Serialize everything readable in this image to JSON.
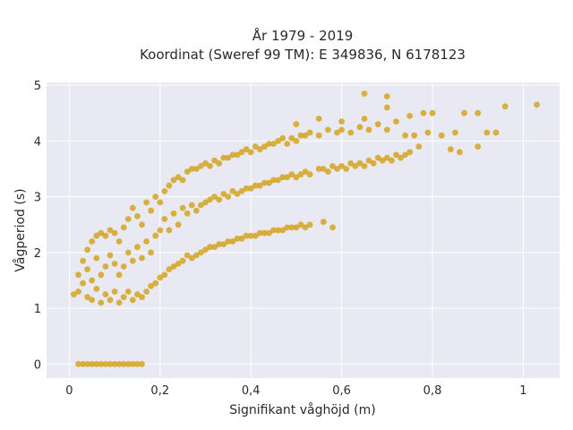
{
  "chart_data": {
    "type": "scatter",
    "title_lines": [
      "År 1979 - 2019",
      "Koordinat (Sweref 99 TM): E 349836, N 6178123"
    ],
    "xlabel": "Signifikant våghöjd (m)",
    "ylabel": "Vågperiod (s)",
    "xlim": [
      -0.05,
      1.08
    ],
    "ylim": [
      -0.25,
      5.05
    ],
    "x_ticks": [
      0,
      0.2,
      0.4,
      0.6,
      0.8,
      1
    ],
    "x_tick_labels": [
      "0",
      "0,2",
      "0,4",
      "0,6",
      "0,8",
      "1"
    ],
    "y_ticks": [
      0,
      1,
      2,
      3,
      4,
      5
    ],
    "y_tick_labels": [
      "0",
      "1",
      "2",
      "3",
      "4",
      "5"
    ],
    "grid": true,
    "colors": {
      "marker": "#d4a520",
      "plot_bg": "#e8e9f2",
      "grid": "#ffffff"
    },
    "series": [
      {
        "points": [
          [
            0.02,
            0.0
          ],
          [
            0.03,
            0.0
          ],
          [
            0.04,
            0.0
          ],
          [
            0.05,
            0.0
          ],
          [
            0.06,
            0.0
          ],
          [
            0.07,
            0.0
          ],
          [
            0.08,
            0.0
          ],
          [
            0.09,
            0.0
          ],
          [
            0.1,
            0.0
          ],
          [
            0.11,
            0.0
          ],
          [
            0.12,
            0.0
          ],
          [
            0.13,
            0.0
          ],
          [
            0.14,
            0.0
          ],
          [
            0.15,
            0.0
          ],
          [
            0.16,
            0.0
          ],
          [
            0.01,
            1.25
          ],
          [
            0.02,
            1.3
          ],
          [
            0.02,
            1.6
          ],
          [
            0.03,
            1.45
          ],
          [
            0.03,
            1.85
          ],
          [
            0.04,
            1.2
          ],
          [
            0.04,
            1.7
          ],
          [
            0.04,
            2.05
          ],
          [
            0.05,
            1.15
          ],
          [
            0.05,
            1.5
          ],
          [
            0.05,
            2.2
          ],
          [
            0.06,
            1.35
          ],
          [
            0.06,
            1.9
          ],
          [
            0.06,
            2.3
          ],
          [
            0.07,
            1.1
          ],
          [
            0.07,
            1.6
          ],
          [
            0.07,
            2.35
          ],
          [
            0.08,
            1.25
          ],
          [
            0.08,
            1.75
          ],
          [
            0.08,
            2.3
          ],
          [
            0.09,
            1.15
          ],
          [
            0.09,
            1.95
          ],
          [
            0.09,
            2.4
          ],
          [
            0.1,
            1.3
          ],
          [
            0.1,
            1.8
          ],
          [
            0.1,
            2.35
          ],
          [
            0.11,
            1.1
          ],
          [
            0.11,
            1.6
          ],
          [
            0.11,
            2.2
          ],
          [
            0.12,
            1.2
          ],
          [
            0.12,
            1.75
          ],
          [
            0.12,
            2.45
          ],
          [
            0.13,
            1.3
          ],
          [
            0.13,
            2.0
          ],
          [
            0.13,
            2.6
          ],
          [
            0.14,
            1.15
          ],
          [
            0.14,
            1.85
          ],
          [
            0.14,
            2.8
          ],
          [
            0.15,
            1.25
          ],
          [
            0.15,
            2.1
          ],
          [
            0.15,
            2.65
          ],
          [
            0.16,
            1.2
          ],
          [
            0.16,
            1.9
          ],
          [
            0.16,
            2.5
          ],
          [
            0.17,
            1.3
          ],
          [
            0.17,
            2.2
          ],
          [
            0.17,
            2.9
          ],
          [
            0.18,
            1.4
          ],
          [
            0.18,
            2.0
          ],
          [
            0.18,
            2.75
          ],
          [
            0.19,
            1.45
          ],
          [
            0.19,
            2.3
          ],
          [
            0.19,
            3.0
          ],
          [
            0.2,
            1.55
          ],
          [
            0.2,
            2.4
          ],
          [
            0.2,
            2.9
          ],
          [
            0.21,
            1.6
          ],
          [
            0.21,
            2.6
          ],
          [
            0.21,
            3.1
          ],
          [
            0.22,
            1.7
          ],
          [
            0.22,
            2.4
          ],
          [
            0.22,
            3.2
          ],
          [
            0.23,
            1.75
          ],
          [
            0.23,
            2.7
          ],
          [
            0.23,
            3.3
          ],
          [
            0.24,
            1.8
          ],
          [
            0.24,
            2.5
          ],
          [
            0.24,
            3.35
          ],
          [
            0.25,
            1.85
          ],
          [
            0.25,
            2.8
          ],
          [
            0.25,
            3.3
          ],
          [
            0.26,
            1.95
          ],
          [
            0.26,
            2.7
          ],
          [
            0.26,
            3.45
          ],
          [
            0.27,
            1.9
          ],
          [
            0.27,
            2.85
          ],
          [
            0.27,
            3.5
          ],
          [
            0.28,
            1.95
          ],
          [
            0.28,
            2.75
          ],
          [
            0.28,
            3.5
          ],
          [
            0.29,
            2.0
          ],
          [
            0.29,
            2.85
          ],
          [
            0.29,
            3.55
          ],
          [
            0.3,
            2.05
          ],
          [
            0.3,
            2.9
          ],
          [
            0.3,
            3.6
          ],
          [
            0.31,
            2.1
          ],
          [
            0.31,
            2.95
          ],
          [
            0.31,
            3.55
          ],
          [
            0.32,
            2.1
          ],
          [
            0.32,
            3.0
          ],
          [
            0.32,
            3.65
          ],
          [
            0.33,
            2.15
          ],
          [
            0.33,
            2.95
          ],
          [
            0.33,
            3.6
          ],
          [
            0.34,
            2.15
          ],
          [
            0.34,
            3.05
          ],
          [
            0.34,
            3.7
          ],
          [
            0.35,
            2.2
          ],
          [
            0.35,
            3.0
          ],
          [
            0.35,
            3.7
          ],
          [
            0.36,
            2.2
          ],
          [
            0.36,
            3.1
          ],
          [
            0.36,
            3.75
          ],
          [
            0.37,
            2.25
          ],
          [
            0.37,
            3.05
          ],
          [
            0.37,
            3.75
          ],
          [
            0.38,
            2.25
          ],
          [
            0.38,
            3.1
          ],
          [
            0.38,
            3.8
          ],
          [
            0.39,
            2.3
          ],
          [
            0.39,
            3.15
          ],
          [
            0.39,
            3.85
          ],
          [
            0.4,
            2.3
          ],
          [
            0.4,
            3.15
          ],
          [
            0.4,
            3.8
          ],
          [
            0.41,
            2.3
          ],
          [
            0.41,
            3.2
          ],
          [
            0.41,
            3.9
          ],
          [
            0.42,
            2.35
          ],
          [
            0.42,
            3.2
          ],
          [
            0.42,
            3.85
          ],
          [
            0.43,
            2.35
          ],
          [
            0.43,
            3.25
          ],
          [
            0.43,
            3.9
          ],
          [
            0.44,
            2.35
          ],
          [
            0.44,
            3.25
          ],
          [
            0.44,
            3.95
          ],
          [
            0.45,
            2.4
          ],
          [
            0.45,
            3.3
          ],
          [
            0.45,
            3.95
          ],
          [
            0.46,
            2.4
          ],
          [
            0.46,
            3.3
          ],
          [
            0.46,
            4.0
          ],
          [
            0.47,
            2.4
          ],
          [
            0.47,
            3.35
          ],
          [
            0.47,
            4.05
          ],
          [
            0.48,
            2.45
          ],
          [
            0.48,
            3.35
          ],
          [
            0.48,
            3.95
          ],
          [
            0.49,
            2.45
          ],
          [
            0.49,
            3.4
          ],
          [
            0.49,
            4.05
          ],
          [
            0.5,
            2.45
          ],
          [
            0.5,
            3.35
          ],
          [
            0.5,
            4.0
          ],
          [
            0.51,
            2.5
          ],
          [
            0.51,
            3.4
          ],
          [
            0.51,
            4.1
          ],
          [
            0.52,
            2.45
          ],
          [
            0.52,
            3.45
          ],
          [
            0.52,
            4.1
          ],
          [
            0.53,
            2.5
          ],
          [
            0.53,
            3.4
          ],
          [
            0.53,
            4.15
          ],
          [
            0.55,
            3.5
          ],
          [
            0.55,
            4.1
          ],
          [
            0.56,
            2.55
          ],
          [
            0.56,
            3.5
          ],
          [
            0.57,
            3.45
          ],
          [
            0.57,
            4.2
          ],
          [
            0.58,
            2.45
          ],
          [
            0.58,
            3.55
          ],
          [
            0.59,
            3.5
          ],
          [
            0.59,
            4.15
          ],
          [
            0.6,
            3.55
          ],
          [
            0.6,
            4.2
          ],
          [
            0.61,
            3.5
          ],
          [
            0.62,
            3.6
          ],
          [
            0.62,
            4.15
          ],
          [
            0.63,
            3.55
          ],
          [
            0.64,
            3.6
          ],
          [
            0.64,
            4.25
          ],
          [
            0.65,
            3.55
          ],
          [
            0.66,
            3.65
          ],
          [
            0.66,
            4.2
          ],
          [
            0.67,
            3.6
          ],
          [
            0.68,
            3.7
          ],
          [
            0.68,
            4.3
          ],
          [
            0.69,
            3.65
          ],
          [
            0.7,
            3.7
          ],
          [
            0.7,
            4.2
          ],
          [
            0.71,
            3.65
          ],
          [
            0.72,
            3.75
          ],
          [
            0.72,
            4.35
          ],
          [
            0.73,
            3.7
          ],
          [
            0.74,
            3.75
          ],
          [
            0.74,
            4.1
          ],
          [
            0.75,
            3.8
          ],
          [
            0.76,
            4.1
          ],
          [
            0.77,
            3.9
          ],
          [
            0.78,
            4.5
          ],
          [
            0.79,
            4.15
          ],
          [
            0.8,
            4.5
          ],
          [
            0.82,
            4.1
          ],
          [
            0.84,
            3.85
          ],
          [
            0.85,
            4.15
          ],
          [
            0.86,
            3.8
          ],
          [
            0.87,
            4.5
          ],
          [
            0.9,
            3.9
          ],
          [
            0.9,
            4.5
          ],
          [
            0.92,
            4.15
          ],
          [
            0.94,
            4.15
          ],
          [
            0.96,
            4.62
          ],
          [
            1.03,
            4.65
          ],
          [
            0.65,
            4.85
          ],
          [
            0.7,
            4.8
          ],
          [
            0.65,
            4.4
          ],
          [
            0.7,
            4.6
          ],
          [
            0.75,
            4.45
          ],
          [
            0.6,
            4.35
          ],
          [
            0.55,
            4.4
          ],
          [
            0.5,
            4.3
          ]
        ]
      }
    ]
  }
}
